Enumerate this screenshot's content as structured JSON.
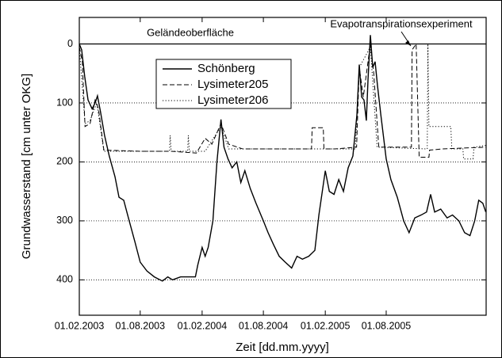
{
  "chart_data": {
    "type": "line",
    "y_label": "Grundwasserstand [cm unter OKG]",
    "x_label": "Zeit [dd.mm.yyyy]",
    "annotations": [
      "Geländeoberfläche",
      "Evapotranspirationsexperiment"
    ],
    "reference_line": 0,
    "xlim": [
      "2003-02-01",
      "2006-05-25"
    ],
    "xticks": [
      {
        "value": "2003-02-01",
        "label": "01.02.2003"
      },
      {
        "value": "2003-08-01",
        "label": "01.08.2003"
      },
      {
        "value": "2004-02-01",
        "label": "01.02.2004"
      },
      {
        "value": "2004-08-01",
        "label": "01.08.2004"
      },
      {
        "value": "2005-02-01",
        "label": "01.02.2005"
      },
      {
        "value": "2005-08-01",
        "label": "01.08.2005"
      }
    ],
    "ylim": [
      460,
      -45
    ],
    "yticks": [
      0,
      100,
      200,
      300,
      400
    ],
    "grid": true,
    "legend": "upper left",
    "series": [
      {
        "name": "Schönberg",
        "color": "#000000",
        "style": "solid",
        "x": [
          "2003-02-01",
          "2003-02-08",
          "2003-02-17",
          "2003-02-27",
          "2003-03-11",
          "2003-03-20",
          "2003-03-27",
          "2003-04-05",
          "2003-04-17",
          "2003-05-01",
          "2003-05-18",
          "2003-05-30",
          "2003-06-13",
          "2003-06-27",
          "2003-07-16",
          "2003-08-01",
          "2003-08-21",
          "2003-09-12",
          "2003-10-06",
          "2003-10-22",
          "2003-11-05",
          "2003-11-29",
          "2004-01-12",
          "2004-01-19",
          "2004-02-01",
          "2004-02-10",
          "2004-02-19",
          "2004-03-04",
          "2004-03-16",
          "2004-03-28",
          "2004-04-06",
          "2004-04-18",
          "2004-04-30",
          "2004-05-14",
          "2004-05-26",
          "2004-06-07",
          "2004-06-23",
          "2004-07-10",
          "2004-08-01",
          "2004-08-15",
          "2004-08-31",
          "2004-09-17",
          "2004-10-05",
          "2004-10-24",
          "2004-11-09",
          "2004-11-25",
          "2004-12-14",
          "2005-01-01",
          "2005-01-13",
          "2005-02-01",
          "2005-02-13",
          "2005-02-27",
          "2005-03-13",
          "2005-03-27",
          "2005-04-10",
          "2005-04-24",
          "2005-05-06",
          "2005-05-13",
          "2005-05-20",
          "2005-05-27",
          "2005-06-03",
          "2005-06-08",
          "2005-06-15",
          "2005-06-22",
          "2005-06-29",
          "2005-07-06",
          "2005-07-16",
          "2005-08-01",
          "2005-08-15",
          "2005-09-03",
          "2005-09-22",
          "2005-10-08",
          "2005-10-25",
          "2005-11-13",
          "2005-11-29",
          "2005-12-11",
          "2005-12-23",
          "2006-01-10",
          "2006-01-29",
          "2006-02-14",
          "2006-03-05",
          "2006-03-22",
          "2006-04-07",
          "2006-04-21",
          "2006-05-03",
          "2006-05-15",
          "2006-05-24"
        ],
        "values": [
          0,
          10,
          55,
          95,
          110,
          100,
          88,
          115,
          155,
          190,
          225,
          260,
          265,
          295,
          335,
          370,
          385,
          395,
          402,
          395,
          400,
          395,
          395,
          375,
          345,
          360,
          345,
          300,
          200,
          128,
          175,
          195,
          210,
          200,
          235,
          215,
          245,
          270,
          300,
          320,
          340,
          360,
          370,
          380,
          360,
          365,
          360,
          350,
          290,
          215,
          250,
          255,
          230,
          250,
          210,
          190,
          120,
          35,
          90,
          95,
          130,
          60,
          -15,
          40,
          30,
          70,
          120,
          195,
          230,
          260,
          300,
          320,
          295,
          290,
          285,
          255,
          285,
          280,
          295,
          290,
          300,
          320,
          325,
          300,
          265,
          270,
          285
        ]
      },
      {
        "name": "Lysimeter205",
        "color": "#000000",
        "style": "dashed",
        "x": [
          "2003-02-01",
          "2003-02-10",
          "2003-02-18",
          "2003-03-05",
          "2003-03-20",
          "2003-03-30",
          "2003-04-15",
          "2003-08-01",
          "2003-11-01",
          "2004-01-15",
          "2004-02-10",
          "2004-03-01",
          "2004-03-28",
          "2004-04-20",
          "2004-06-01",
          "2004-09-01",
          "2004-12-22",
          "2004-12-24",
          "2005-01-26",
          "2005-01-28",
          "2005-03-01",
          "2005-05-05",
          "2005-05-13",
          "2005-05-25",
          "2005-06-15",
          "2005-06-25",
          "2005-07-10",
          "2005-10-15",
          "2005-10-17",
          "2005-10-29",
          "2005-11-07",
          "2005-12-06",
          "2005-12-08",
          "2006-01-15",
          "2006-05-25"
        ],
        "values": [
          5,
          30,
          140,
          135,
          95,
          110,
          180,
          182,
          182,
          185,
          160,
          170,
          135,
          170,
          178,
          178,
          178,
          142,
          142,
          178,
          178,
          175,
          40,
          90,
          0,
          50,
          175,
          175,
          10,
          0,
          192,
          192,
          180,
          178,
          175
        ]
      },
      {
        "name": "Lysimeter206",
        "color": "#000000",
        "style": "dotted",
        "x": [
          "2003-02-01",
          "2003-02-18",
          "2003-03-05",
          "2003-03-25",
          "2003-04-15",
          "2003-10-27",
          "2003-10-29",
          "2003-11-01",
          "2003-12-20",
          "2003-12-22",
          "2003-12-25",
          "2004-02-10",
          "2004-03-28",
          "2004-04-20",
          "2005-05-01",
          "2005-05-13",
          "2005-06-15",
          "2005-07-05",
          "2005-12-01",
          "2005-12-03",
          "2005-12-06",
          "2006-02-09",
          "2006-02-12",
          "2006-03-17",
          "2006-03-19",
          "2006-04-16",
          "2006-04-19",
          "2006-05-25"
        ],
        "values": [
          5,
          135,
          130,
          100,
          182,
          182,
          155,
          182,
          182,
          155,
          182,
          182,
          140,
          178,
          178,
          40,
          5,
          175,
          178,
          0,
          140,
          140,
          178,
          178,
          195,
          195,
          175,
          172
        ]
      }
    ]
  }
}
